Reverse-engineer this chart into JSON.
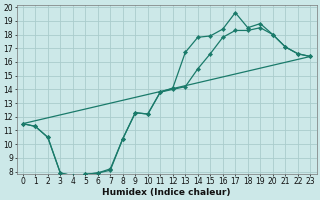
{
  "xlabel": "Humidex (Indice chaleur)",
  "bg_color": "#cce8e8",
  "grid_color": "#aacccc",
  "line_color": "#1a7a6a",
  "line1_x": [
    0,
    1,
    2,
    3,
    4,
    5,
    6,
    7,
    8,
    9,
    10,
    11,
    12,
    13,
    14,
    15,
    16,
    17,
    18,
    19,
    20,
    21,
    22,
    23
  ],
  "line1_y": [
    11.5,
    11.3,
    10.5,
    7.9,
    7.7,
    7.8,
    7.9,
    8.1,
    10.4,
    12.3,
    12.2,
    13.8,
    14.1,
    16.7,
    17.8,
    17.9,
    18.4,
    19.6,
    18.5,
    18.8,
    18.0,
    17.1,
    16.6,
    16.4
  ],
  "line2_x": [
    0,
    1,
    2,
    3,
    4,
    5,
    6,
    7,
    8,
    9,
    10,
    11,
    12,
    13,
    14,
    15,
    16,
    17,
    18,
    19,
    20,
    21,
    22,
    23
  ],
  "line2_y": [
    11.5,
    11.3,
    10.5,
    7.9,
    7.7,
    7.8,
    7.9,
    8.2,
    10.4,
    12.3,
    12.2,
    13.8,
    14.0,
    14.2,
    15.5,
    16.6,
    17.8,
    18.3,
    18.3,
    18.5,
    18.0,
    17.1,
    16.6,
    16.4
  ],
  "line3_x": [
    0,
    23
  ],
  "line3_y": [
    11.5,
    16.4
  ],
  "ylim": [
    8,
    20
  ],
  "xlim": [
    -0.5,
    23.5
  ],
  "yticks": [
    8,
    9,
    10,
    11,
    12,
    13,
    14,
    15,
    16,
    17,
    18,
    19,
    20
  ],
  "xticks": [
    0,
    1,
    2,
    3,
    4,
    5,
    6,
    7,
    8,
    9,
    10,
    11,
    12,
    13,
    14,
    15,
    16,
    17,
    18,
    19,
    20,
    21,
    22,
    23
  ],
  "tick_fontsize": 5.5,
  "xlabel_fontsize": 6.5
}
